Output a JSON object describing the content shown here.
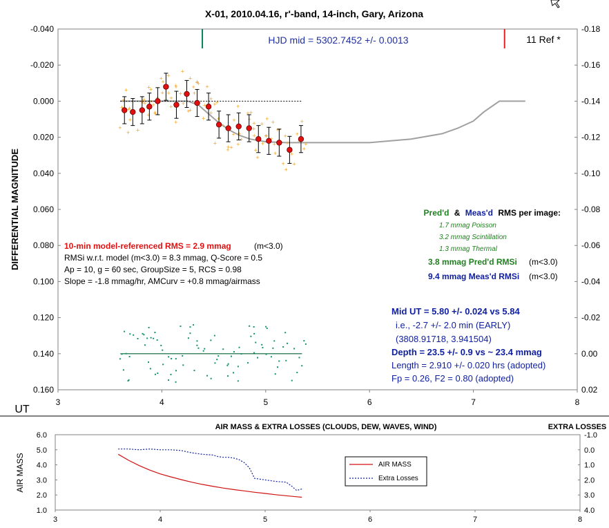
{
  "chart_data": [
    {
      "type": "scatter",
      "title": "X-01, 2010.04.16, r'-band, 14-inch, Gary, Arizona",
      "xlabel": "UT",
      "ylabel": "DIFFERENTIAL MAGNITUDE",
      "xlim": [
        3,
        8
      ],
      "ylim": [
        -0.04,
        0.16
      ],
      "y_inverted": true,
      "y2lim": [
        -0.18,
        0.02
      ],
      "x_ticks": [
        "3",
        "4",
        "5",
        "6",
        "7",
        "8"
      ],
      "y_ticks": [
        "-0.040",
        "-0.020",
        "0.000",
        "0.020",
        "0.040",
        "0.060",
        "0.080",
        "0.100",
        "0.120",
        "0.140",
        "0.160"
      ],
      "y2_ticks": [
        "-0.18",
        "-0.16",
        "-0.14",
        "-0.12",
        "-0.10",
        "-0.08",
        "-0.06",
        "-0.04",
        "-0.02",
        "0.00",
        "0.02"
      ],
      "header_text": "HJD mid = 5302.7452 +/- 0.0013",
      "ref_text": "11 Ref *",
      "ingress_marker_x": 4.39,
      "egress_marker_x": 7.3,
      "series": [
        {
          "name": "group means",
          "x": [
            3.64,
            3.72,
            3.81,
            3.88,
            3.96,
            4.04,
            4.14,
            4.24,
            4.34,
            4.45,
            4.55,
            4.64,
            4.74,
            4.84,
            4.93,
            5.03,
            5.13,
            5.23,
            5.34
          ],
          "y": [
            0.005,
            0.006,
            0.005,
            0.003,
            0.0,
            -0.008,
            0.002,
            -0.004,
            0.001,
            0.003,
            0.013,
            0.015,
            0.014,
            0.015,
            0.021,
            0.022,
            0.023,
            0.027,
            0.021
          ],
          "err": [
            0.0075,
            0.0075,
            0.0075,
            0.0075,
            0.0075,
            0.0075,
            0.0075,
            0.0075,
            0.0075,
            0.0075,
            0.0075,
            0.0075,
            0.0075,
            0.0075,
            0.0075,
            0.0075,
            0.0075,
            0.0075,
            0.0075
          ]
        },
        {
          "name": "transit model",
          "x": [
            3.6,
            4.15,
            4.25,
            4.35,
            4.45,
            4.55,
            4.65,
            4.75,
            4.85,
            5.0,
            5.2,
            5.5,
            6.0,
            6.4,
            6.7,
            6.85,
            7.0,
            7.1,
            7.25,
            7.5
          ],
          "y": [
            0.0,
            0.0,
            0.0,
            0.002,
            0.007,
            0.012,
            0.016,
            0.019,
            0.021,
            0.0225,
            0.023,
            0.023,
            0.023,
            0.021,
            0.018,
            0.015,
            0.011,
            0.006,
            0.0,
            0.0
          ]
        },
        {
          "name": "out-of-transit level",
          "x": [
            3.6,
            5.35
          ],
          "y": [
            0.0,
            0.0
          ]
        },
        {
          "name": "residual zero line",
          "x": [
            3.6,
            5.35
          ],
          "y": [
            0.14,
            0.14
          ]
        }
      ],
      "annotations_left": [
        "10-min model-referenced RMS = 2.9 mmag",
        "(m<3.0)",
        "RMSi w.r.t. model (m<3.0) = 8.3 mmag, Q-Score = 0.5",
        "Ap = 10, g = 60 sec, GroupSize = 5, RCS = 0.98",
        "Slope = -1.8 mmag/hr, AMCurv = +0.8 mmag/airmass"
      ],
      "rms_block": {
        "heading_pred": "Pred'd",
        "heading_amp": "&",
        "heading_meas": "Meas'd",
        "heading_rest": "RMS per image:",
        "poisson": "1.7 mmag Poisson",
        "scintillation": "3.2 mmag Scintillation",
        "thermal": "1.3 mmag Thermal",
        "pred_value": "3.8 mmag Pred'd  RMSi",
        "meas_value": "9.4 mmag Meas'd RMSi",
        "cond": "(m<3.0)"
      },
      "results_block": {
        "mid_ut": "Mid UT = 5.80 +/- 0.024 vs 5.84",
        "early": "i.e., -2.7 +/- 2.0 min (EARLY)",
        "ephem": "(3808.91718, 3.941504)",
        "depth": "Depth = 23.5 +/- 0.9 vs  ~ 23.4 mmag",
        "length": "Length = 2.910 +/- 0.020 hrs (adopted)",
        "fp": "Fp = 0.26, F2 = 0.80 (adopted)"
      },
      "colors": {
        "mean_points": "#e01010",
        "raw_points": "#f0a020",
        "model": "#a0a0a0",
        "residuals": "#109070",
        "zero_line": "#006030",
        "ingress_marker": "#008060",
        "egress_marker": "#e02020",
        "rms_red": "#e01010",
        "pred_green": "#208020",
        "meas_blue": "#1020a0",
        "header_blue": "#2030a0"
      }
    },
    {
      "type": "line",
      "title": "AIR MASS & EXTRA LOSSES (CLOUDS, DEW, WAVES, WIND)",
      "ylabel": "AIR MASS",
      "y2label": "EXTRA LOSSES",
      "xlim": [
        3,
        8
      ],
      "ylim": [
        1.0,
        6.0
      ],
      "y2lim": [
        -1.0,
        4.0
      ],
      "y2_inverted": true,
      "x_ticks": [
        "3",
        "4",
        "5",
        "6",
        "7",
        "8"
      ],
      "y_ticks": [
        "6.0",
        "5.0",
        "4.0",
        "3.0",
        "2.0",
        "1.0"
      ],
      "y2_ticks": [
        "-1.0",
        "0.0",
        "1.0",
        "2.0",
        "3.0",
        "4.0"
      ],
      "legend_position": "center-right",
      "series": [
        {
          "name": "AIR MASS",
          "color": "#d01010",
          "x": [
            3.6,
            3.7,
            3.8,
            3.9,
            4.0,
            4.1,
            4.2,
            4.3,
            4.4,
            4.5,
            4.6,
            4.7,
            4.8,
            4.9,
            5.0,
            5.1,
            5.2,
            5.3,
            5.35
          ],
          "y": [
            4.7,
            4.3,
            3.95,
            3.65,
            3.4,
            3.2,
            3.02,
            2.85,
            2.7,
            2.58,
            2.46,
            2.36,
            2.27,
            2.18,
            2.1,
            2.02,
            1.95,
            1.88,
            1.85
          ]
        },
        {
          "name": "Extra Losses",
          "color": "#1020a0",
          "x": [
            3.6,
            3.7,
            3.8,
            3.9,
            4.0,
            4.1,
            4.2,
            4.3,
            4.4,
            4.5,
            4.55,
            4.6,
            4.65,
            4.7,
            4.75,
            4.8,
            4.85,
            4.9,
            5.0,
            5.1,
            5.2,
            5.25,
            5.3,
            5.35
          ],
          "y": [
            -0.05,
            -0.05,
            0.0,
            -0.05,
            0.0,
            0.0,
            0.05,
            0.2,
            0.3,
            0.35,
            0.45,
            0.5,
            0.5,
            0.55,
            0.65,
            0.85,
            1.2,
            1.9,
            2.0,
            2.1,
            2.15,
            2.4,
            2.7,
            2.6
          ]
        }
      ]
    }
  ],
  "main_raw_seed": 7,
  "raw_points_per_group": 5
}
